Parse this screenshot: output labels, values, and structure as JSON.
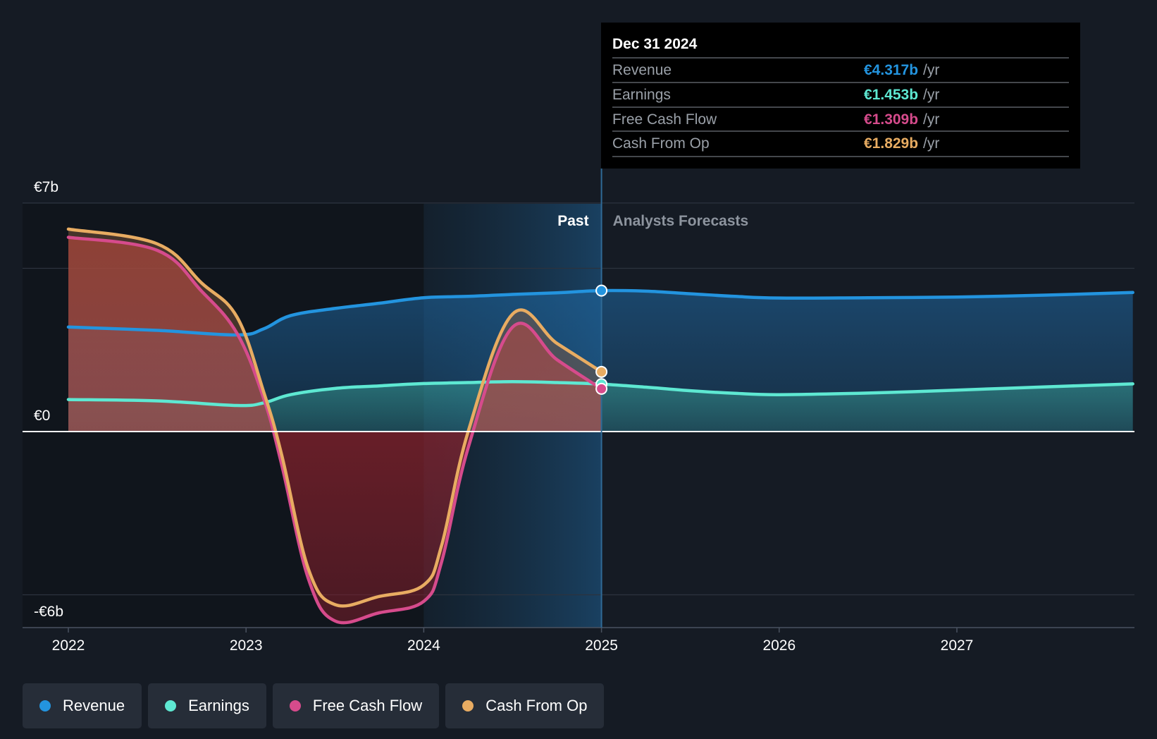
{
  "colors": {
    "revenue": "#2394df",
    "earnings": "#5ee8d2",
    "free_cash_flow": "#d64b8c",
    "cash_from_op": "#e8ac62",
    "background": "#151b24"
  },
  "labels": {
    "past": "Past",
    "forecast": "Analysts Forecasts"
  },
  "tooltip": {
    "date": "Dec 31 2024",
    "rows": [
      {
        "label": "Revenue",
        "value": "€4.317b",
        "unit": "/yr",
        "series": "revenue"
      },
      {
        "label": "Earnings",
        "value": "€1.453b",
        "unit": "/yr",
        "series": "earnings"
      },
      {
        "label": "Free Cash Flow",
        "value": "€1.309b",
        "unit": "/yr",
        "series": "free_cash_flow"
      },
      {
        "label": "Cash From Op",
        "value": "€1.829b",
        "unit": "/yr",
        "series": "cash_from_op"
      }
    ]
  },
  "legend": [
    {
      "label": "Revenue",
      "series": "revenue"
    },
    {
      "label": "Earnings",
      "series": "earnings"
    },
    {
      "label": "Free Cash Flow",
      "series": "free_cash_flow"
    },
    {
      "label": "Cash From Op",
      "series": "cash_from_op"
    }
  ],
  "chart_data": {
    "type": "area",
    "x_unit": "year",
    "xlim": [
      2021.75,
      2027.99
    ],
    "ylim": [
      -6.1,
      7
    ],
    "x_ticks": [
      2022,
      2023,
      2024,
      2025,
      2026,
      2027
    ],
    "x_tick_labels": [
      "2022",
      "2023",
      "2024",
      "2025",
      "2026",
      "2027"
    ],
    "y_ticks": [
      {
        "value": 7,
        "label": "€7b"
      },
      {
        "value": 0,
        "label": "€0"
      },
      {
        "value": -6,
        "label": "-€6b"
      }
    ],
    "gridlines": [
      7,
      5,
      0,
      -5
    ],
    "past_end": 2025.0,
    "highlight_start": 2024.0,
    "y_unit": "€b",
    "series": [
      {
        "key": "revenue",
        "name": "Revenue",
        "x": [
          2022.0,
          2022.5,
          2022.95,
          2023.1,
          2023.25,
          2023.5,
          2023.75,
          2024.0,
          2024.25,
          2024.5,
          2024.75,
          2025.0,
          2025.25,
          2025.5,
          2025.75,
          2026.0,
          2026.5,
          2027.0,
          2027.5,
          2027.99
        ],
        "y": [
          3.2,
          3.1,
          2.96,
          3.15,
          3.55,
          3.77,
          3.93,
          4.1,
          4.14,
          4.2,
          4.25,
          4.317,
          4.3,
          4.22,
          4.14,
          4.09,
          4.1,
          4.12,
          4.18,
          4.26
        ]
      },
      {
        "key": "earnings",
        "name": "Earnings",
        "x": [
          2022.0,
          2022.5,
          2022.95,
          2023.1,
          2023.25,
          2023.5,
          2023.75,
          2024.0,
          2024.25,
          2024.5,
          2024.75,
          2025.0,
          2025.25,
          2025.5,
          2025.75,
          2026.0,
          2026.5,
          2027.0,
          2027.5,
          2027.99
        ],
        "y": [
          0.98,
          0.94,
          0.8,
          0.88,
          1.13,
          1.32,
          1.4,
          1.47,
          1.5,
          1.53,
          1.5,
          1.453,
          1.36,
          1.25,
          1.17,
          1.13,
          1.18,
          1.27,
          1.37,
          1.46
        ]
      },
      {
        "key": "free_cash_flow",
        "name": "Free Cash Flow",
        "x": [
          2022.0,
          2022.5,
          2022.75,
          2022.95,
          2023.1,
          2023.2,
          2023.35,
          2023.5,
          2023.75,
          2024.0,
          2024.1,
          2024.25,
          2024.5,
          2024.75,
          2025.0
        ],
        "y": [
          5.95,
          5.55,
          4.3,
          3.0,
          1.0,
          -1.0,
          -4.5,
          -5.8,
          -5.55,
          -5.2,
          -4.0,
          -0.5,
          3.2,
          2.2,
          1.309
        ]
      },
      {
        "key": "cash_from_op",
        "name": "Cash From Op",
        "x": [
          2022.0,
          2022.5,
          2022.75,
          2022.95,
          2023.1,
          2023.2,
          2023.35,
          2023.5,
          2023.75,
          2024.0,
          2024.1,
          2024.25,
          2024.5,
          2024.75,
          2025.0
        ],
        "y": [
          6.2,
          5.75,
          4.55,
          3.5,
          1.2,
          -0.7,
          -4.2,
          -5.3,
          -5.05,
          -4.7,
          -3.5,
          0.0,
          3.6,
          2.7,
          1.829
        ]
      }
    ]
  }
}
